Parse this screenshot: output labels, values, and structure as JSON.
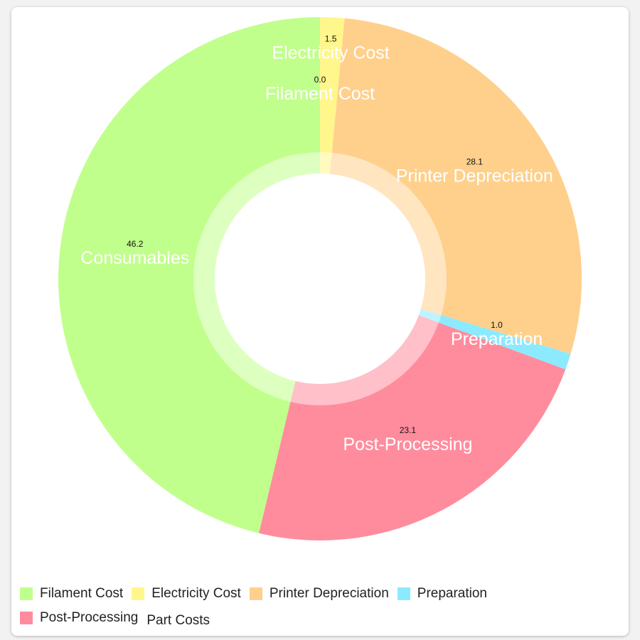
{
  "chart_data": {
    "type": "pie",
    "style": "donut",
    "slices": [
      {
        "label": "Filament Cost",
        "value": 0.0,
        "color": "#C1FF8C"
      },
      {
        "label": "Electricity Cost",
        "value": 1.5,
        "color": "#FFF68C"
      },
      {
        "label": "Printer Depreciation",
        "value": 28.1,
        "color": "#FFD08C"
      },
      {
        "label": "Preparation",
        "value": 1.0,
        "color": "#8CEAFF"
      },
      {
        "label": "Post-Processing",
        "value": 23.1,
        "color": "#FF8C9D"
      },
      {
        "label": "Consumables",
        "value": 46.2,
        "color": "#C1FF8C"
      }
    ],
    "value_format": "0.0",
    "legend_placement": "bottom-left",
    "legend": [
      {
        "label": "Filament Cost",
        "color": "#C1FF8C"
      },
      {
        "label": "Electricity Cost",
        "color": "#FFF68C"
      },
      {
        "label": "Printer Depreciation",
        "color": "#FFD08C"
      },
      {
        "label": "Preparation",
        "color": "#8CEAFF"
      },
      {
        "label": "Post-Processing",
        "color": "#FF8C9D"
      },
      {
        "label": "Part Costs",
        "color": ""
      }
    ]
  }
}
